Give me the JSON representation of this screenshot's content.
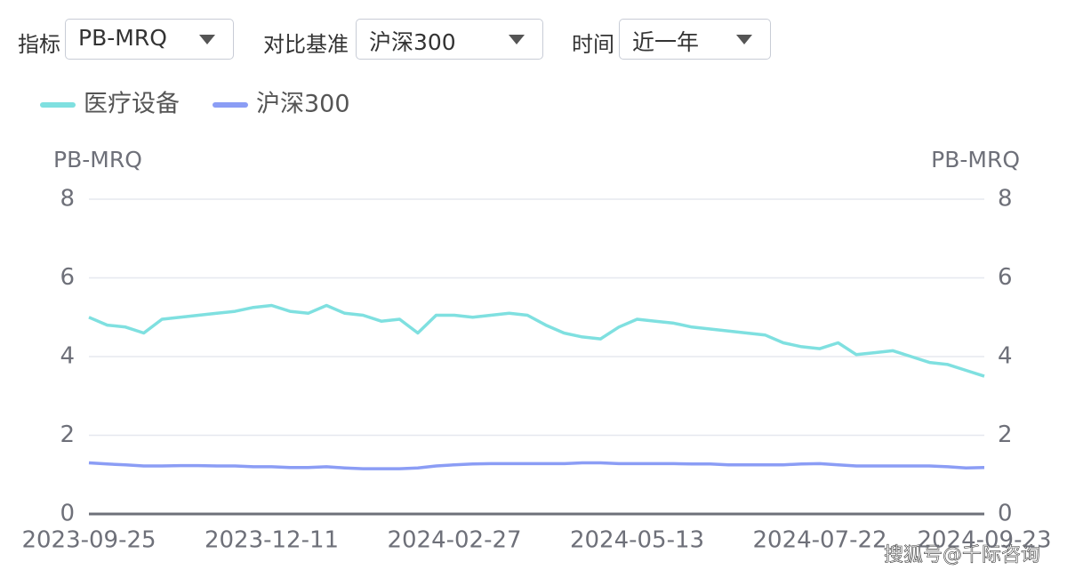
{
  "controls": [
    {
      "label": "指标",
      "value": "PB-MRQ"
    },
    {
      "label": "对比基准",
      "value": "沪深300"
    },
    {
      "label": "时间",
      "value": "近一年"
    }
  ],
  "watermark": "搜狐号@千际咨询",
  "chart_data": {
    "type": "line",
    "y_label": "PB-MRQ",
    "y2_label": "PB-MRQ",
    "categories": [
      "2023-09-25",
      null,
      null,
      null,
      null,
      null,
      null,
      null,
      null,
      null,
      "2023-12-11",
      null,
      null,
      null,
      null,
      null,
      null,
      null,
      null,
      null,
      "2024-02-27",
      null,
      null,
      null,
      null,
      null,
      null,
      null,
      null,
      null,
      "2024-05-13",
      null,
      null,
      null,
      null,
      null,
      null,
      null,
      null,
      null,
      "2024-07-22",
      null,
      null,
      null,
      null,
      null,
      null,
      null,
      null,
      "2024-09-23"
    ],
    "series": [
      {
        "name": "医疗设备",
        "color": "#7fe0e0",
        "values": [
          5.0,
          4.8,
          4.75,
          4.6,
          4.95,
          5.0,
          5.05,
          5.1,
          5.15,
          5.25,
          5.3,
          5.15,
          5.1,
          5.3,
          5.1,
          5.05,
          4.9,
          4.95,
          4.6,
          5.05,
          5.05,
          5.0,
          5.05,
          5.1,
          5.05,
          4.8,
          4.6,
          4.5,
          4.45,
          4.75,
          4.95,
          4.9,
          4.85,
          4.75,
          4.7,
          4.65,
          4.6,
          4.55,
          4.35,
          4.25,
          4.2,
          4.35,
          4.05,
          4.1,
          4.15,
          4.0,
          3.85,
          3.8,
          3.65,
          3.5
        ]
      },
      {
        "name": "沪深300",
        "color": "#8b9df5",
        "values": [
          1.3,
          1.27,
          1.25,
          1.22,
          1.22,
          1.23,
          1.23,
          1.22,
          1.22,
          1.2,
          1.2,
          1.18,
          1.18,
          1.2,
          1.17,
          1.15,
          1.15,
          1.15,
          1.17,
          1.22,
          1.25,
          1.27,
          1.28,
          1.28,
          1.28,
          1.28,
          1.28,
          1.3,
          1.3,
          1.28,
          1.28,
          1.28,
          1.28,
          1.27,
          1.27,
          1.25,
          1.25,
          1.25,
          1.25,
          1.27,
          1.28,
          1.25,
          1.22,
          1.22,
          1.22,
          1.22,
          1.22,
          1.2,
          1.17,
          1.18
        ]
      }
    ],
    "ylim": [
      0,
      8
    ],
    "yticks": [
      0,
      2,
      4,
      6,
      8
    ],
    "y2lim": [
      0,
      8
    ],
    "y2ticks": [
      0,
      2,
      4,
      6,
      8
    ],
    "grid": true
  }
}
